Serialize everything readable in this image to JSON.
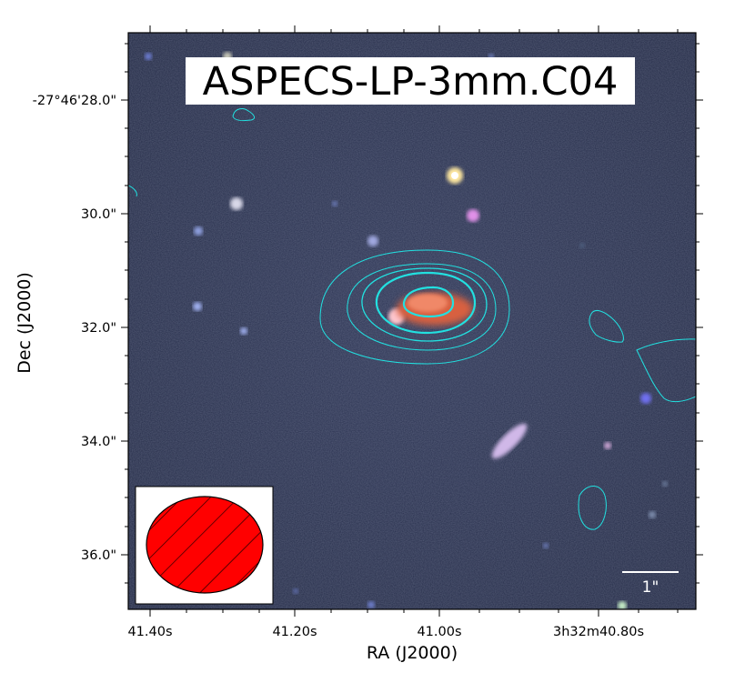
{
  "figure": {
    "title": "ASPECS-LP-3mm.C04",
    "x_axis": {
      "label": "RA (J2000)",
      "ticks": [
        "41.40s",
        "41.20s",
        "41.00s",
        "3h32m40.80s"
      ]
    },
    "y_axis": {
      "label": "Dec (J2000)",
      "ticks": [
        "-27°46'28.0\"",
        "30.0\"",
        "32.0\"",
        "34.0\"",
        "36.0\""
      ]
    },
    "scale_bar": {
      "label": "1\"",
      "arcsec": 1
    },
    "beam": {
      "fill_color": "#ff0000",
      "hatch": "diagonal"
    },
    "contour_color": "#22e0e0",
    "background_color": "#2a3150"
  }
}
